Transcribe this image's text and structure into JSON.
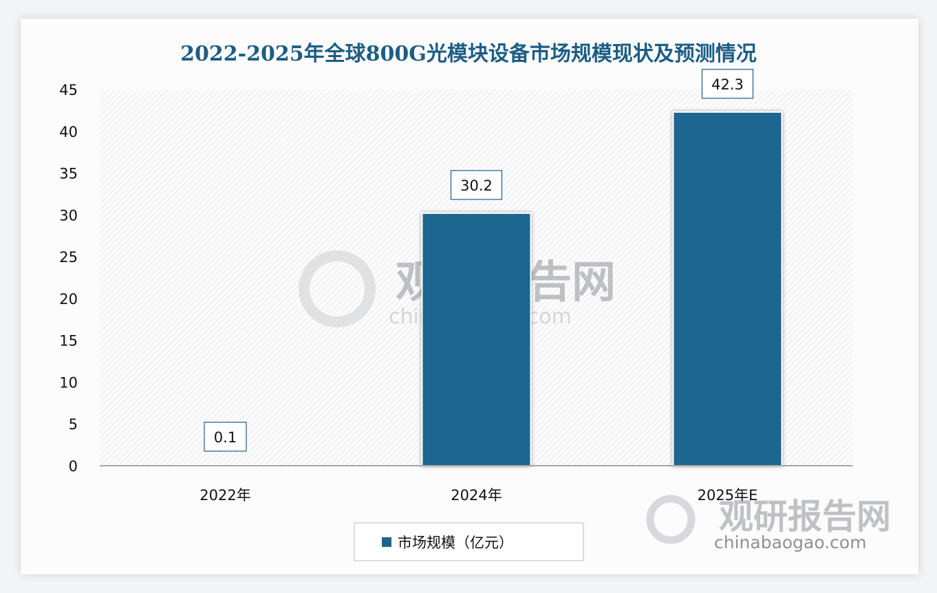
{
  "chart_data": {
    "type": "bar",
    "title": "2022-2025年全球800G光模块设备市场规模现状及预测情况",
    "categories": [
      "2022年",
      "2024年",
      "2025年E"
    ],
    "series": [
      {
        "name": "市场规模（亿元）",
        "values": [
          0.1,
          30.2,
          42.3
        ]
      }
    ],
    "data_labels": [
      "0.1",
      "30.2",
      "42.3"
    ],
    "ylim": [
      0,
      45
    ],
    "yticks": [
      "0",
      "5",
      "10",
      "15",
      "20",
      "25",
      "30",
      "35",
      "40",
      "45"
    ],
    "xlabel": "",
    "ylabel": "",
    "legend": "bottom",
    "grid": false,
    "bar_color": "#1b6690"
  },
  "watermark": {
    "cn": "观研报告网",
    "url": "chinabaogao.com"
  }
}
